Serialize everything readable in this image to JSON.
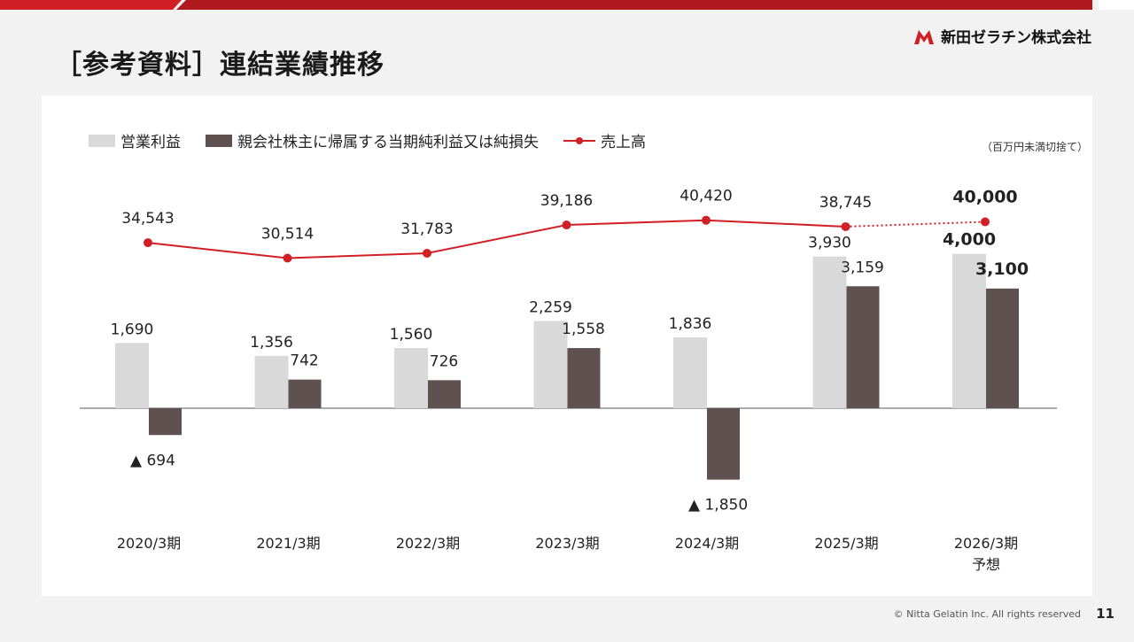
{
  "title": "［参考資料］連結業績推移",
  "logo": {
    "text": "新田ゼラチン株式会社"
  },
  "unit_note": "（百万円未満切捨て）",
  "footer": "© Nitta Gelatin Inc. All rights reserved",
  "page_number": "11",
  "colors": {
    "red": "#d11f26",
    "bar_operating": "#d9d9d9",
    "bar_net": "#5f5150",
    "top_bar": "#b0191e"
  },
  "chart_data": {
    "type": "bar",
    "categories": [
      "2020/3期",
      "2021/3期",
      "2022/3期",
      "2023/3期",
      "2024/3期",
      "2025/3期",
      "2026/3期\n予想"
    ],
    "series": [
      {
        "name": "営業利益",
        "type": "bar",
        "values": [
          1690,
          1356,
          1560,
          2259,
          1836,
          3930,
          4000
        ],
        "labels": [
          "1,690",
          "1,356",
          "1,560",
          "2,259",
          "1,836",
          "3,930",
          "4,000"
        ]
      },
      {
        "name": "親会社株主に帰属する当期純利益又は純損失",
        "type": "bar",
        "values": [
          -694,
          742,
          726,
          1558,
          -1850,
          3159,
          3100
        ],
        "labels": [
          "▲ 694",
          "742",
          "726",
          "1,558",
          "▲ 1,850",
          "3,159",
          "3,100"
        ]
      },
      {
        "name": "売上高",
        "type": "line",
        "values": [
          34543,
          30514,
          31783,
          39186,
          40420,
          38745,
          40000
        ],
        "labels": [
          "34,543",
          "30,514",
          "31,783",
          "39,186",
          "40,420",
          "38,745",
          "40,000"
        ],
        "forecast_from_index": 5
      }
    ],
    "forecast_index": 6,
    "legend_position": "top-left"
  }
}
